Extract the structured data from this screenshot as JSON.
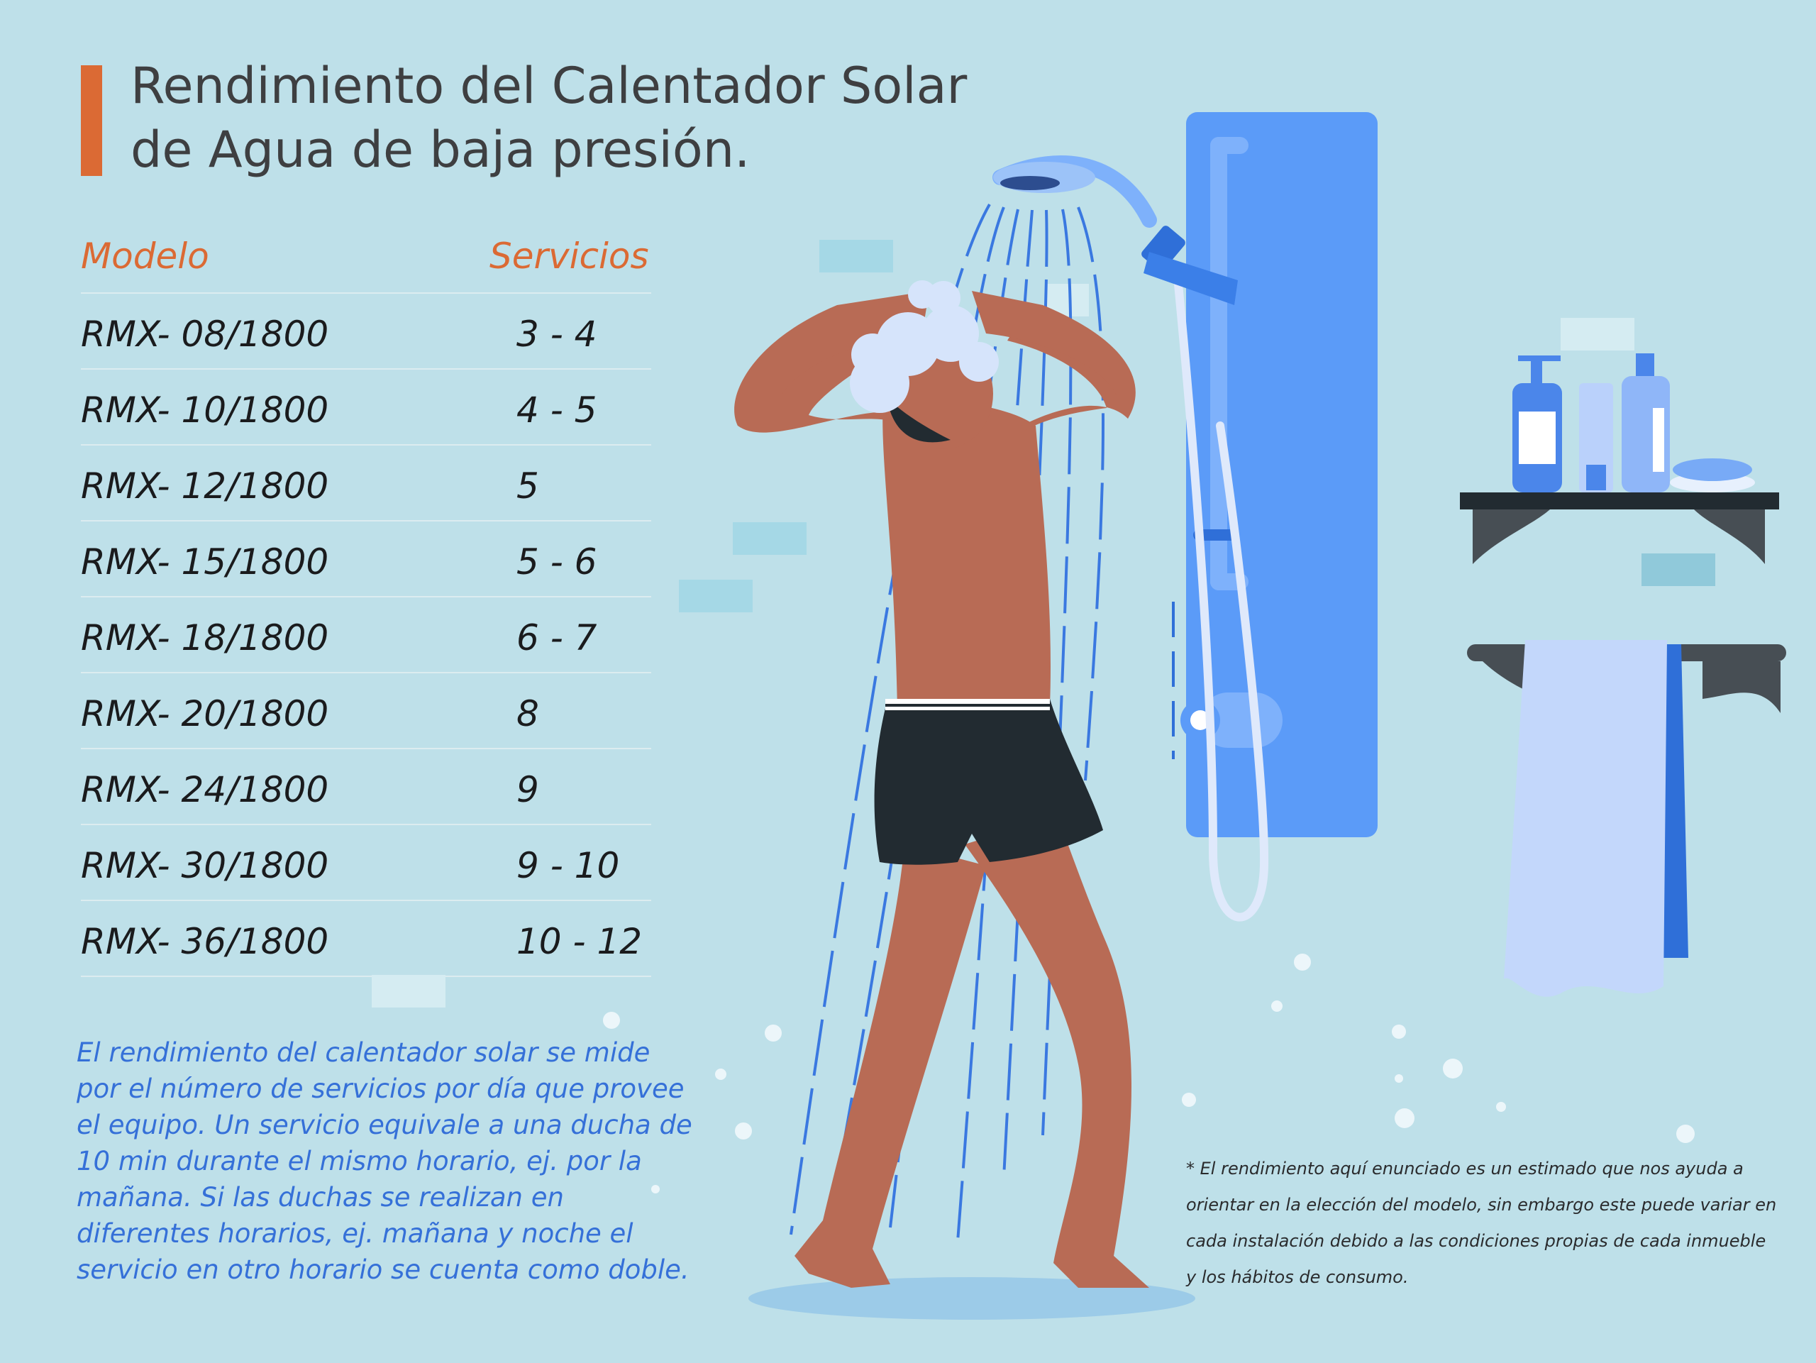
{
  "title": {
    "line1": "Rendimiento del Calentador Solar",
    "line2": "de Agua de baja presión."
  },
  "table": {
    "headers": {
      "model": "Modelo",
      "services": "Servicios"
    },
    "rows": [
      {
        "model": "RMX- 08/1800",
        "services": "3 - 4"
      },
      {
        "model": "RMX- 10/1800",
        "services": "4 - 5"
      },
      {
        "model": "RMX- 12/1800",
        "services": "5"
      },
      {
        "model": "RMX- 15/1800",
        "services": "5 - 6"
      },
      {
        "model": "RMX- 18/1800",
        "services": "6 - 7"
      },
      {
        "model": "RMX- 20/1800",
        "services": "8"
      },
      {
        "model": "RMX- 24/1800",
        "services": "9"
      },
      {
        "model": "RMX- 30/1800",
        "services": "9 - 10"
      },
      {
        "model": "RMX- 36/1800",
        "services": "10 - 12"
      }
    ]
  },
  "description": {
    "lines": [
      "El rendimiento del calentador solar se mide",
      "por el número de servicios por día que provee",
      "el equipo. Un servicio equivale a una ducha de",
      "10 min durante el mismo horario, ej. por la",
      "mañana. Si las duchas se realizan en",
      "diferentes horarios, ej. mañana y noche el",
      "servicio en otro horario se cuenta como doble."
    ]
  },
  "footnote": {
    "lines": [
      "* El rendimiento aquí enunciado es un estimado que nos ayuda a",
      "orientar en la elección del modelo, sin embargo este puede variar en",
      "cada instalación debido a las condiciones propias de cada inmueble",
      "y los hábitos de consumo."
    ]
  },
  "colors": {
    "background": "#bee0e9",
    "accent": "#db6a34",
    "description_text": "#3570d8",
    "shower_panel": "#5b9bf8",
    "skin": "#b86b55",
    "shorts": "#222b31"
  },
  "illustration": {
    "subject": "person-showering",
    "icons": [
      "shower-head-icon",
      "shower-panel-icon",
      "shelf-icon",
      "soap-bottle-icon",
      "towel-icon",
      "soap-icon"
    ]
  }
}
